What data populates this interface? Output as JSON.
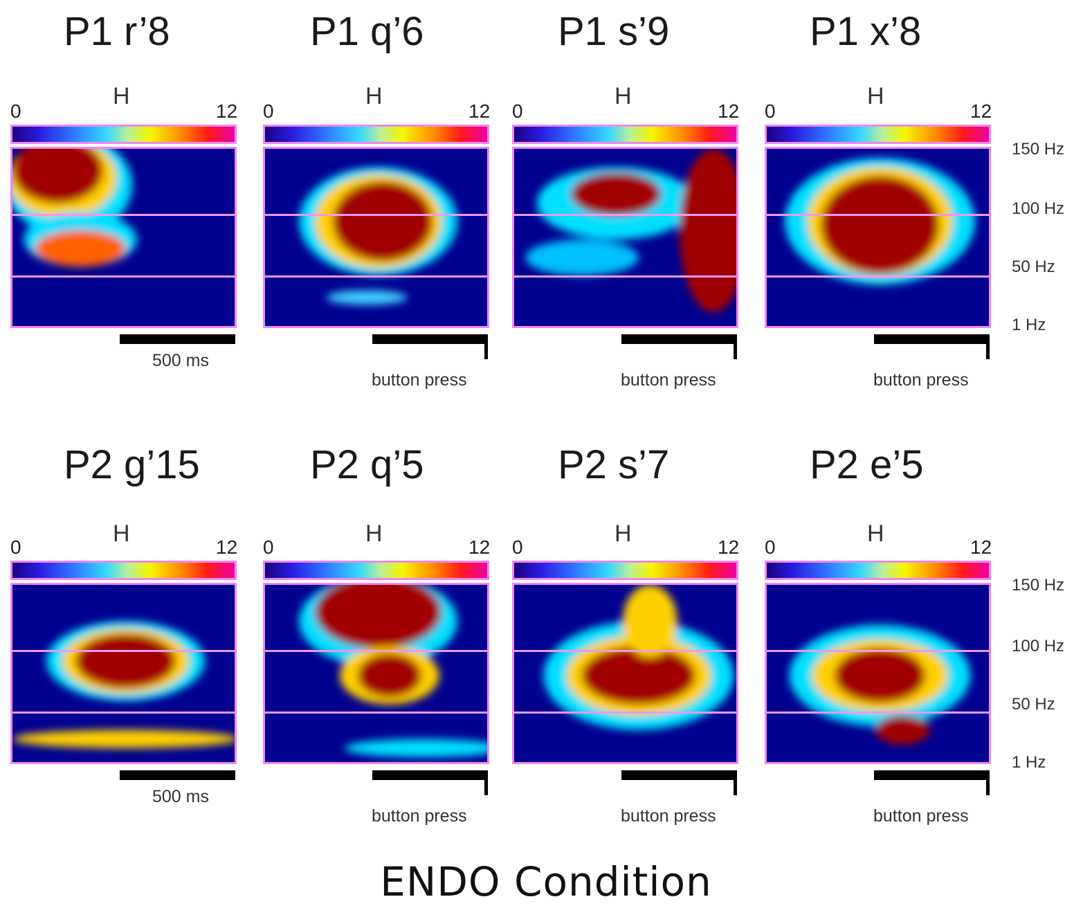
{
  "chart_data": {
    "type": "heatmap",
    "colorbar": {
      "label": "H",
      "min": "0",
      "max": "12"
    },
    "y_tick_labels": [
      "150 Hz",
      "100 Hz",
      "50 Hz",
      "1 Hz"
    ],
    "scale_bar_label": "500 ms",
    "event_label": "button press",
    "rows": [
      {
        "titles": [
          "P1 r’8",
          "P1 q’6",
          "P1 s’9",
          "P1 x’8"
        ]
      },
      {
        "titles": [
          "P2 g’15",
          "P2 q’5",
          "P2 s’7",
          "P2 e’5"
        ]
      }
    ]
  },
  "bottom_title": "ENDO Condition"
}
